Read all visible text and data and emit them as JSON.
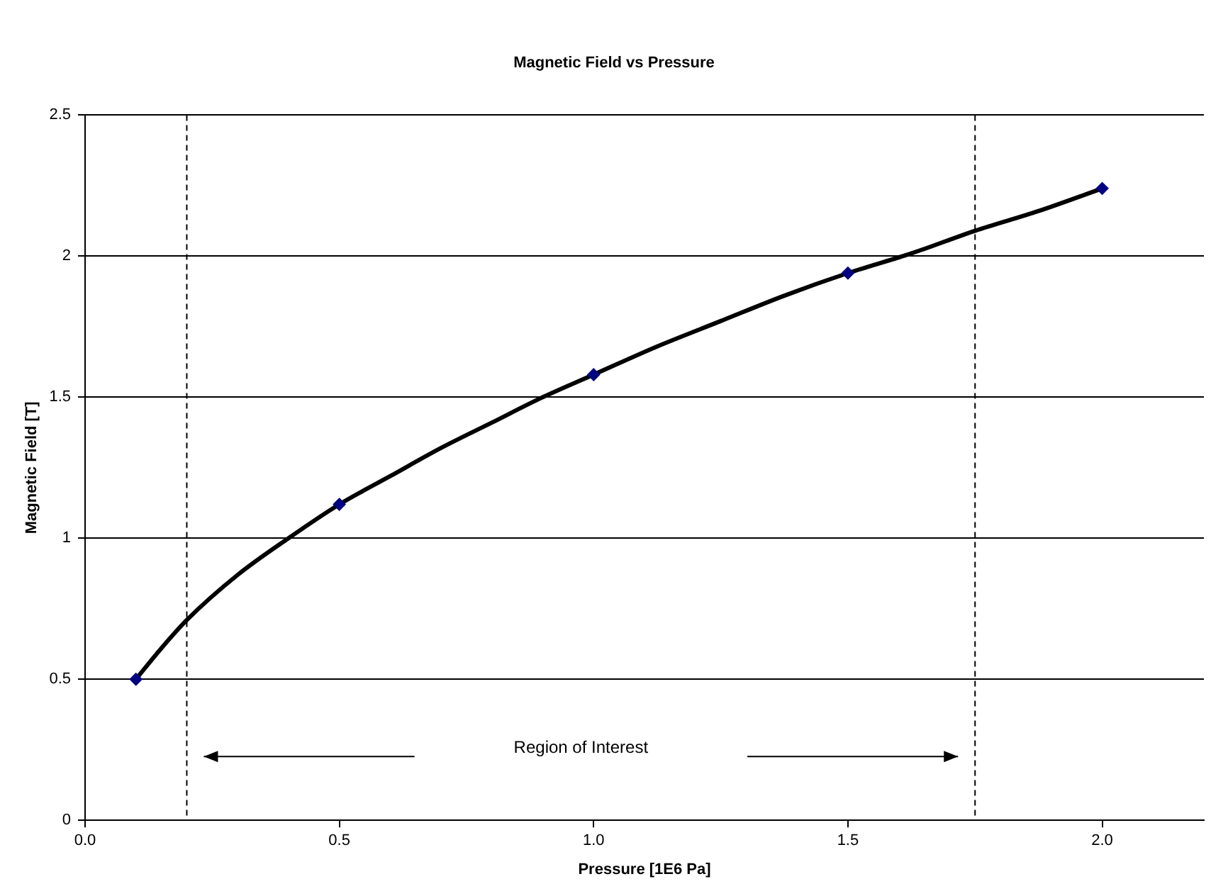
{
  "chart_data": {
    "type": "scatter",
    "title": "Magnetic Field vs Pressure",
    "xlabel": "Pressure [1E6 Pa]",
    "ylabel": "Magnetic Field [T]",
    "series": [
      {
        "type": "line",
        "color": "#000000",
        "marker": "none",
        "line_style": "solid",
        "x": [
          0.1,
          0.15,
          0.2,
          0.3,
          0.4,
          0.5,
          0.6,
          0.7,
          0.8,
          0.9,
          1.0,
          1.125,
          1.25,
          1.375,
          1.5,
          1.625,
          1.75,
          1.875,
          2.0
        ],
        "values": [
          0.5,
          0.61,
          0.71,
          0.87,
          1.0,
          1.12,
          1.22,
          1.32,
          1.41,
          1.5,
          1.58,
          1.68,
          1.77,
          1.86,
          1.94,
          2.01,
          2.09,
          2.16,
          2.24
        ]
      },
      {
        "color": "#000080",
        "marker": "diamond",
        "x": [
          0.1,
          0.5,
          1.0,
          1.5,
          2.0
        ],
        "values": [
          0.5,
          1.12,
          1.58,
          1.94,
          2.24
        ]
      }
    ],
    "xlim": [
      0,
      2.2
    ],
    "xticks": [
      {
        "value": 0,
        "label": "0.0"
      },
      {
        "value": 0.5,
        "label": "0.5"
      },
      {
        "value": 1,
        "label": "1.0"
      },
      {
        "value": 1.5,
        "label": "1.5"
      },
      {
        "value": 2,
        "label": "2.0"
      }
    ],
    "ylim": [
      0,
      2.5
    ],
    "yticks": [
      0,
      0.5,
      1,
      1.5,
      2,
      2.5
    ],
    "grid": "y",
    "legend": false,
    "ref_lines": [
      {
        "axis": "x",
        "value": 0.2,
        "line_style": "dashed",
        "color": "#000000"
      },
      {
        "axis": "x",
        "value": 1.75,
        "line_style": "dashed",
        "color": "#000000"
      }
    ],
    "annotations": [
      "Region of Interest"
    ]
  }
}
